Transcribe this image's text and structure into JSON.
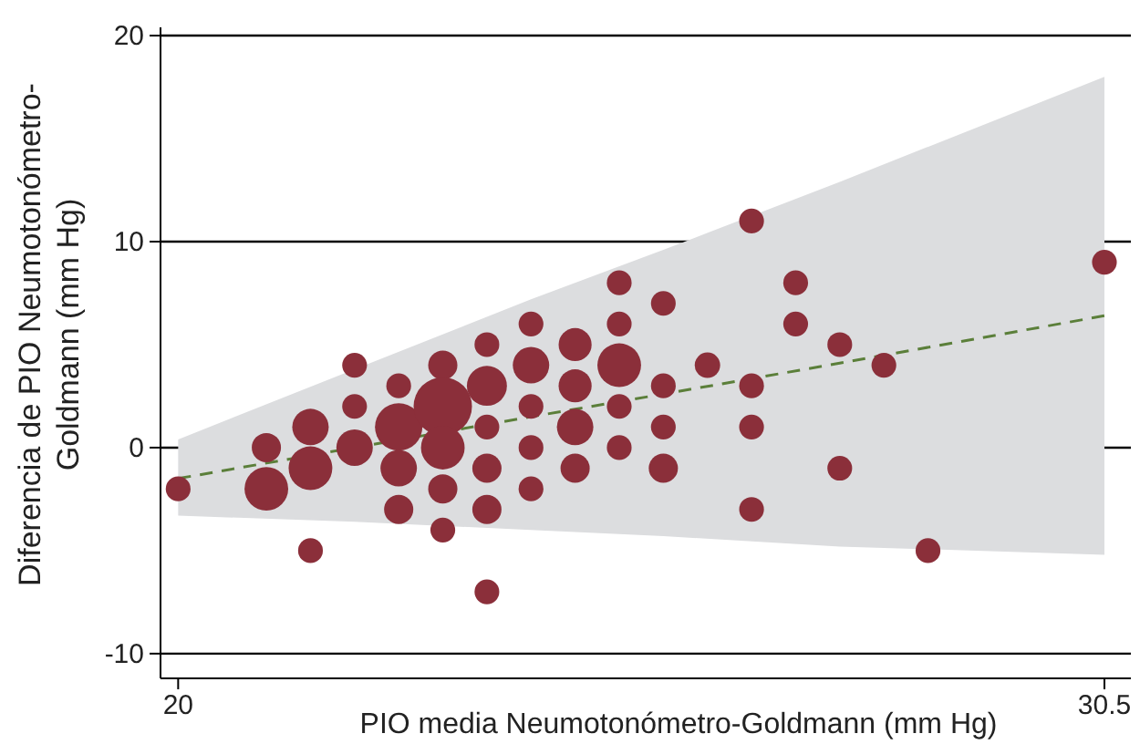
{
  "chart_data": {
    "type": "bubble",
    "xlabel": "PIO media Neumotonómetro-Goldmann (mm Hg)",
    "ylabel": "Diferencia de PIO Neumotonómetro-Goldmann (mm Hg)",
    "xlim": [
      19.8,
      30.8
    ],
    "ylim": [
      -11.2,
      20.4
    ],
    "xticks": [
      20,
      30.5
    ],
    "yticks": [
      -10,
      0,
      10,
      20
    ],
    "grid": "y",
    "series": [
      {
        "type": "line",
        "color": "#5b7f3a",
        "line_style": "dashed",
        "x": [
          20,
          22,
          24,
          25.5,
          27.5,
          30.5
        ],
        "values": [
          -1.5,
          0,
          1.5,
          2.6,
          4.1,
          6.4
        ],
        "upper": [
          0.4,
          3.8,
          7.2,
          9.6,
          12.9,
          18
        ],
        "lower": [
          -3.3,
          -3.6,
          -4,
          -4.3,
          -4.8,
          -5.2
        ],
        "marker": "none"
      },
      {
        "color": "#8b2f3a",
        "marker": "circle",
        "x": [
          20,
          21,
          21,
          21.5,
          21.5,
          21.5,
          22,
          22,
          22,
          22.5,
          22.5,
          22.5,
          22.5,
          23,
          23,
          23,
          23,
          23,
          23.5,
          23.5,
          23.5,
          23.5,
          23.5,
          23.5,
          24,
          24,
          24,
          24,
          24,
          24.5,
          24.5,
          24.5,
          24.5,
          25,
          25,
          25,
          25,
          25,
          25.5,
          25.5,
          25.5,
          25.5,
          26,
          26.5,
          26.5,
          26.5,
          26.5,
          27,
          27,
          27.5,
          27.5,
          28,
          28.5,
          30.5
        ],
        "values": [
          -2,
          0,
          -2,
          -5,
          1,
          -1,
          4,
          2,
          0,
          3,
          1,
          -1,
          -3,
          4,
          2,
          0,
          -2,
          -4,
          5,
          3,
          1,
          -1,
          -3,
          -7,
          6,
          4,
          2,
          0,
          -2,
          5,
          3,
          1,
          -1,
          8,
          6,
          4,
          2,
          0,
          7,
          3,
          1,
          -1,
          4,
          11,
          3,
          1,
          -3,
          8,
          6,
          5,
          -1,
          4,
          -5,
          9
        ],
        "sizes": [
          0.18,
          0.25,
          0.56,
          0.18,
          0.39,
          0.56,
          0.18,
          0.18,
          0.39,
          0.18,
          0.66,
          0.39,
          0.25,
          0.25,
          1,
          0.56,
          0.25,
          0.18,
          0.18,
          0.47,
          0.18,
          0.25,
          0.25,
          0.18,
          0.18,
          0.39,
          0.18,
          0.18,
          0.18,
          0.32,
          0.32,
          0.39,
          0.25,
          0.18,
          0.18,
          0.56,
          0.18,
          0.18,
          0.18,
          0.18,
          0.18,
          0.25,
          0.19,
          0.18,
          0.18,
          0.18,
          0.18,
          0.18,
          0.18,
          0.18,
          0.18,
          0.18,
          0.18,
          0.18
        ]
      }
    ]
  }
}
